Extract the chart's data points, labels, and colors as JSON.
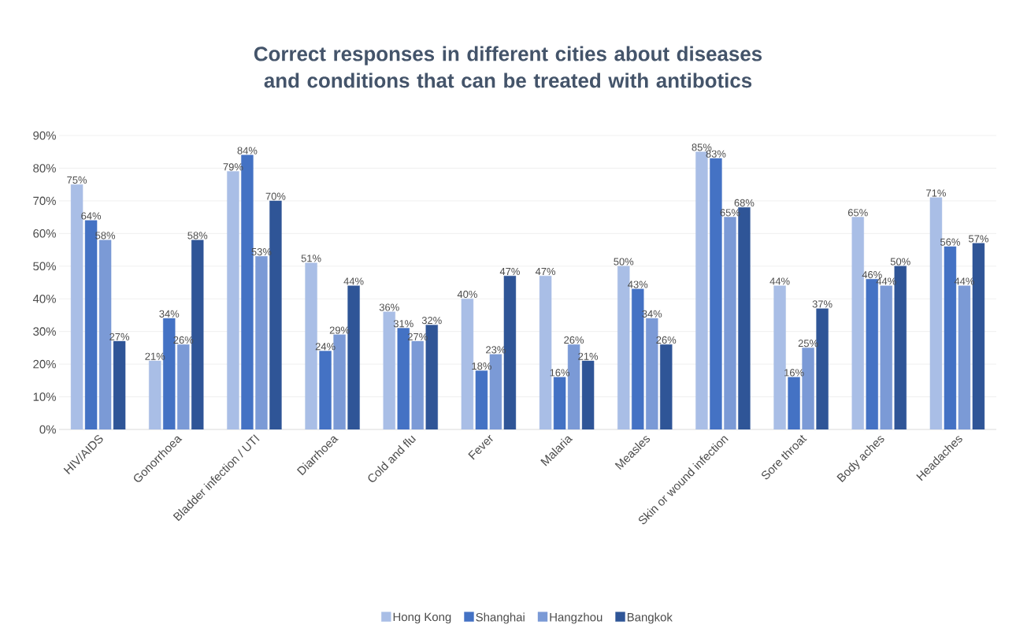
{
  "chart_data": {
    "type": "bar",
    "title": "Correct responses in different cities about diseases and conditions that can be treated with antibotics",
    "categories": [
      "HIV/AIDS",
      "Gonorrhoea",
      "Bladder infection / UTI",
      "Diarrhoea",
      "Cold and flu",
      "Fever",
      "Malaria",
      "Measles",
      "Skin or wound infection",
      "Sore throat",
      "Body aches",
      "Headaches"
    ],
    "series": [
      {
        "name": "Hong Kong",
        "color": "#a9bee6",
        "values": [
          75,
          21,
          79,
          51,
          36,
          40,
          47,
          50,
          85,
          44,
          65,
          71
        ],
        "value_labels": [
          "75%",
          "21%",
          "79%",
          "51%",
          "36%",
          "40%",
          "47%",
          "50%",
          "85%",
          "44%",
          "65%",
          "71%"
        ]
      },
      {
        "name": "Shanghai",
        "color": "#4472c4",
        "values": [
          64,
          34,
          84,
          24,
          31,
          18,
          16,
          43,
          83,
          16,
          46,
          56
        ],
        "value_labels": [
          "64%",
          "34%",
          "84%",
          "24%",
          "31%",
          "18%",
          "16%",
          "43%",
          "83%",
          "16%",
          "46%",
          "56%"
        ]
      },
      {
        "name": "Hangzhou",
        "color": "#7b9ad6",
        "values": [
          58,
          26,
          53,
          29,
          27,
          23,
          26,
          34,
          65,
          25,
          44,
          44
        ],
        "value_labels": [
          "58%",
          "26%",
          "53%",
          "29%",
          "27%",
          "23%",
          "26%",
          "34%",
          "65%",
          "25%",
          "44%",
          "44%"
        ]
      },
      {
        "name": "Bangkok",
        "color": "#2f5597",
        "values": [
          27,
          58,
          70,
          44,
          32,
          47,
          21,
          26,
          68,
          37,
          50,
          57
        ],
        "value_labels": [
          "27%",
          "58%",
          "70%",
          "44%",
          "32%",
          "47%",
          "21%",
          "26%",
          "68%",
          "37%",
          "50%",
          "57%"
        ]
      }
    ],
    "ylim": [
      0,
      90
    ],
    "yticks": [
      {
        "value": 0,
        "label": "0%"
      },
      {
        "value": 10,
        "label": "10%"
      },
      {
        "value": 20,
        "label": "20%"
      },
      {
        "value": 30,
        "label": "30%"
      },
      {
        "value": 40,
        "label": "40%"
      },
      {
        "value": 50,
        "label": "50%"
      },
      {
        "value": 60,
        "label": "60%"
      },
      {
        "value": 70,
        "label": "70%"
      },
      {
        "value": 80,
        "label": "80%"
      },
      {
        "value": 90,
        "label": "90%"
      }
    ],
    "grid": "y",
    "legend": "bottom"
  }
}
